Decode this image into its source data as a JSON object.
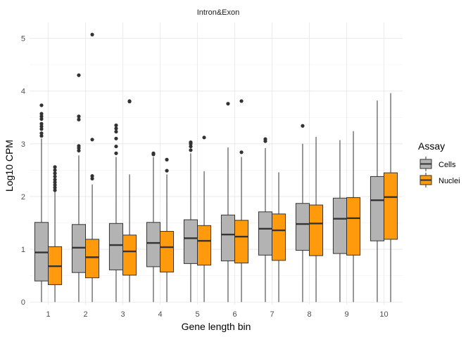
{
  "chart_data": {
    "type": "boxplot",
    "title": "Intron&Exon",
    "xlabel": "Gene length bin",
    "ylabel": "Log10 CPM",
    "categories": [
      "1",
      "2",
      "3",
      "4",
      "5",
      "6",
      "7",
      "8",
      "9",
      "10"
    ],
    "ylim": [
      -0.05,
      5.3
    ],
    "yticks": [
      0,
      1,
      2,
      3,
      4,
      5
    ],
    "grid": true,
    "legend": {
      "title": "Assay",
      "position": "right"
    },
    "series": [
      {
        "name": "Cells",
        "color": "#b3b3b3",
        "boxes": [
          {
            "min": 0.0,
            "q1": 0.4,
            "median": 0.94,
            "q3": 1.51,
            "max": 3.1,
            "outliers": [
              3.15,
              3.2,
              3.28,
              3.33,
              3.38,
              3.47,
              3.52,
              3.57,
              3.73
            ]
          },
          {
            "min": 0.0,
            "q1": 0.56,
            "median": 1.03,
            "q3": 1.47,
            "max": 2.78,
            "outliers": [
              2.87,
              2.92,
              2.96,
              3.46,
              3.52,
              4.3
            ]
          },
          {
            "min": 0.0,
            "q1": 0.61,
            "median": 1.08,
            "q3": 1.49,
            "max": 2.75,
            "outliers": [
              2.82,
              2.95,
              3.1,
              3.23,
              3.29,
              3.35
            ]
          },
          {
            "min": 0.0,
            "q1": 0.67,
            "median": 1.12,
            "q3": 1.51,
            "max": 2.75,
            "outliers": [
              2.8,
              2.82
            ]
          },
          {
            "min": 0.0,
            "q1": 0.73,
            "median": 1.21,
            "q3": 1.56,
            "max": 2.82,
            "outliers": [
              2.88,
              2.95,
              3.0,
              3.03
            ]
          },
          {
            "min": 0.0,
            "q1": 0.78,
            "median": 1.28,
            "q3": 1.65,
            "max": 2.93,
            "outliers": [
              3.76
            ]
          },
          {
            "min": 0.0,
            "q1": 0.89,
            "median": 1.39,
            "q3": 1.71,
            "max": 2.92,
            "outliers": [
              3.05,
              3.09
            ]
          },
          {
            "min": 0.0,
            "q1": 0.98,
            "median": 1.48,
            "q3": 1.87,
            "max": 3.0,
            "outliers": [
              3.34
            ]
          },
          {
            "min": 0.0,
            "q1": 0.92,
            "median": 1.58,
            "q3": 1.97,
            "max": 3.07,
            "outliers": []
          },
          {
            "min": 0.0,
            "q1": 1.16,
            "median": 1.93,
            "q3": 2.38,
            "max": 3.82,
            "outliers": []
          }
        ]
      },
      {
        "name": "Nuclei",
        "color": "#ff9a0d",
        "boxes": [
          {
            "min": 0.0,
            "q1": 0.33,
            "median": 0.68,
            "q3": 1.05,
            "max": 2.1,
            "outliers": [
              2.12,
              2.17,
              2.22,
              2.27,
              2.32,
              2.38,
              2.44,
              2.5,
              2.56
            ]
          },
          {
            "min": 0.0,
            "q1": 0.46,
            "median": 0.85,
            "q3": 1.19,
            "max": 2.23,
            "outliers": [
              2.34,
              2.39,
              3.08,
              5.07
            ]
          },
          {
            "min": 0.0,
            "q1": 0.51,
            "median": 0.96,
            "q3": 1.27,
            "max": 2.42,
            "outliers": [
              3.8,
              3.81
            ]
          },
          {
            "min": 0.0,
            "q1": 0.57,
            "median": 1.04,
            "q3": 1.34,
            "max": 2.42,
            "outliers": [
              2.49,
              2.7
            ]
          },
          {
            "min": 0.0,
            "q1": 0.7,
            "median": 1.16,
            "q3": 1.45,
            "max": 2.48,
            "outliers": [
              3.12
            ]
          },
          {
            "min": 0.0,
            "q1": 0.74,
            "median": 1.24,
            "q3": 1.55,
            "max": 2.75,
            "outliers": [
              2.84,
              3.81
            ]
          },
          {
            "min": 0.0,
            "q1": 0.79,
            "median": 1.36,
            "q3": 1.67,
            "max": 2.46,
            "outliers": []
          },
          {
            "min": 0.0,
            "q1": 0.88,
            "median": 1.49,
            "q3": 1.84,
            "max": 3.13,
            "outliers": []
          },
          {
            "min": 0.0,
            "q1": 0.89,
            "median": 1.59,
            "q3": 1.98,
            "max": 3.24,
            "outliers": []
          },
          {
            "min": 0.0,
            "q1": 1.19,
            "median": 1.99,
            "q3": 2.45,
            "max": 3.96,
            "outliers": []
          }
        ]
      }
    ]
  }
}
